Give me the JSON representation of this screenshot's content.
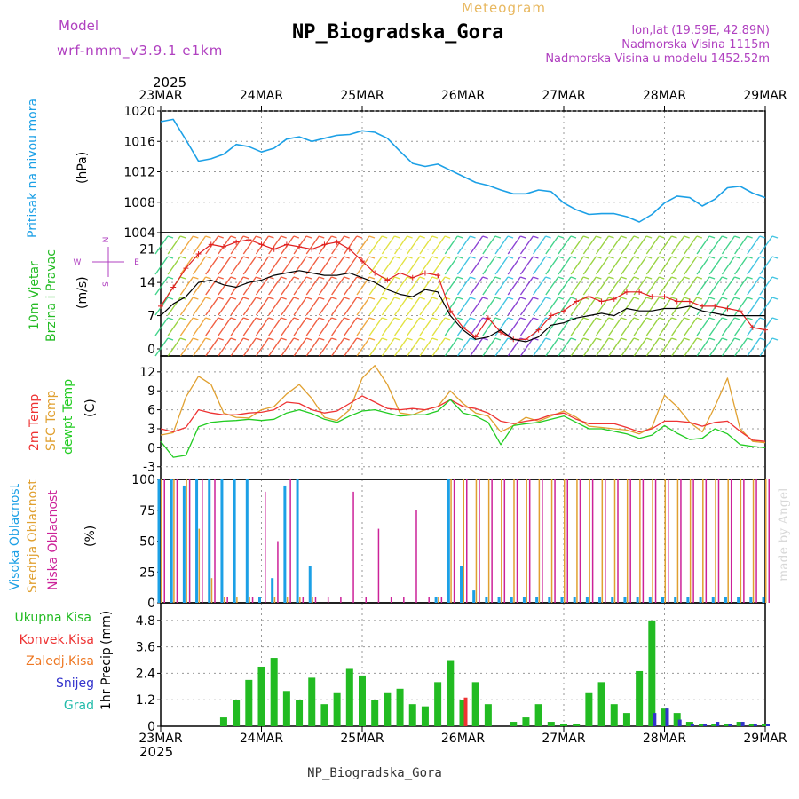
{
  "header": {
    "model_label": "Model",
    "model_name": "wrf-nmm_v3.9.1 e1km",
    "super_title": "Meteogram",
    "title": "NP_Biogradska_Gora",
    "lonlat": "lon,lat (19.59E, 42.89N)",
    "elevation": "Nadmorska Visina 1115m",
    "model_elevation": "Nadmorska Visina u modelu 1452.52m",
    "footer_title": "NP_Biogradska_Gora",
    "watermark": "made by Angel"
  },
  "colors": {
    "pressure": "#1ca0e6",
    "wind_label": "#22bb22",
    "wind_speed": "#000000",
    "wind_gust": "#e02020",
    "t2m": "#ee3333",
    "sfc": "#e0a030",
    "dewpt": "#22cc22",
    "cloud_high": "#1ca0e6",
    "cloud_mid": "#e0a030",
    "cloud_low": "#cc2299",
    "rain_total": "#22bb22",
    "rain_conv": "#ee3333",
    "freezing_rain": "#ee7722",
    "snow": "#3333cc",
    "hail": "#22bbaa",
    "purple_text": "#b040c0"
  },
  "time_axis": {
    "year": "2025",
    "labels": [
      "23MAR",
      "24MAR",
      "25MAR",
      "26MAR",
      "27MAR",
      "28MAR",
      "29MAR"
    ]
  },
  "chart_data": [
    {
      "type": "line",
      "panel": "pressure",
      "ylabel": "Pritisak na nivou mora",
      "unit": "(hPa)",
      "ylim": [
        1004,
        1020
      ],
      "yticks": [
        "1004",
        "1008",
        "1012",
        "1016",
        "1020"
      ],
      "x": [
        0,
        3,
        6,
        9,
        12,
        15,
        18,
        21,
        24,
        27,
        30,
        33,
        36,
        39,
        42,
        45,
        48,
        51,
        54,
        57,
        60,
        63,
        66,
        69,
        72,
        75,
        78,
        81,
        84,
        87,
        90,
        93,
        96,
        99,
        102,
        105,
        108,
        111,
        114,
        117,
        120,
        123,
        126,
        129,
        132,
        135,
        138,
        141,
        144
      ],
      "series": [
        {
          "name": "",
          "values": [
            1018.6,
            1018.9,
            1016.2,
            1013.4,
            1013.7,
            1014.3,
            1015.6,
            1015.3,
            1014.6,
            1015.1,
            1016.3,
            1016.6,
            1016.0,
            1016.4,
            1016.8,
            1016.9,
            1017.4,
            1017.2,
            1016.4,
            1014.7,
            1013.1,
            1012.7,
            1013.0,
            1012.2,
            1011.4,
            1010.6,
            1010.2,
            1009.6,
            1009.1,
            1009.1,
            1009.6,
            1009.4,
            1007.9,
            1007.0,
            1006.4,
            1006.5,
            1006.5,
            1006.1,
            1005.4,
            1006.4,
            1007.9,
            1008.8,
            1008.6,
            1007.5,
            1008.4,
            1009.9,
            1010.1,
            1009.2,
            1008.6
          ]
        }
      ]
    },
    {
      "type": "line",
      "panel": "wind",
      "ylabel": "10m Vjetar",
      "ylabel2": "Brzina i Pravac",
      "unit": "(m/s)",
      "compass": {
        "n": "N",
        "s": "S",
        "e": "E",
        "w": "W"
      },
      "ylim": [
        -1.5,
        24.5
      ],
      "yticks": [
        "0",
        "7",
        "14",
        "21"
      ],
      "x": [
        0,
        3,
        6,
        9,
        12,
        15,
        18,
        21,
        24,
        27,
        30,
        33,
        36,
        39,
        42,
        45,
        48,
        51,
        54,
        57,
        60,
        63,
        66,
        69,
        72,
        75,
        78,
        81,
        84,
        87,
        90,
        93,
        96,
        99,
        102,
        105,
        108,
        111,
        114,
        117,
        120,
        123,
        126,
        129,
        132,
        135,
        138,
        141,
        144
      ],
      "series": [
        {
          "name": "",
          "values": [
            7.0,
            9.5,
            11.0,
            14.0,
            14.5,
            13.5,
            13.0,
            14.0,
            14.5,
            15.5,
            16.0,
            16.5,
            16.0,
            15.5,
            15.5,
            16.0,
            15.0,
            14.0,
            12.5,
            11.5,
            11.0,
            12.5,
            12.0,
            7.0,
            4.0,
            2.0,
            2.5,
            4.0,
            2.0,
            1.5,
            2.5,
            5.0,
            5.5,
            6.5,
            7.0,
            7.5,
            7.0,
            8.5,
            8.0,
            8.0,
            8.5,
            8.5,
            9.0,
            8.0,
            7.5,
            7.0,
            7.0,
            7.0,
            7.0
          ]
        },
        {
          "name": "",
          "values": [
            9.0,
            13.0,
            17.0,
            20.0,
            22.0,
            21.5,
            22.5,
            23.0,
            22.0,
            21.0,
            22.0,
            21.5,
            21.0,
            22.0,
            22.5,
            21.0,
            18.5,
            16.0,
            14.5,
            16.0,
            15.0,
            16.0,
            15.5,
            8.0,
            4.5,
            2.5,
            6.5,
            3.5,
            2.0,
            2.0,
            4.0,
            7.0,
            8.0,
            10.0,
            11.0,
            10.0,
            10.5,
            12.0,
            12.0,
            11.0,
            11.0,
            10.0,
            10.0,
            9.0,
            9.0,
            8.5,
            8.0,
            4.5,
            4.0
          ]
        }
      ]
    },
    {
      "type": "line",
      "panel": "temperature",
      "ylabel": "2m Temp",
      "ylabel2": "SFC Temp",
      "ylabel3": "dewpt Temp",
      "unit": "(C)",
      "ylim": [
        -5,
        14.5
      ],
      "yticks": [
        "-3",
        "0",
        "3",
        "6",
        "9",
        "12"
      ],
      "x": [
        0,
        3,
        6,
        9,
        12,
        15,
        18,
        21,
        24,
        27,
        30,
        33,
        36,
        39,
        42,
        45,
        48,
        51,
        54,
        57,
        60,
        63,
        66,
        69,
        72,
        75,
        78,
        81,
        84,
        87,
        90,
        93,
        96,
        99,
        102,
        105,
        108,
        111,
        114,
        117,
        120,
        123,
        126,
        129,
        132,
        135,
        138,
        141,
        144
      ],
      "series": [
        {
          "name": "",
          "values": [
            3.0,
            2.5,
            3.2,
            6.0,
            5.5,
            5.2,
            5.2,
            5.5,
            5.6,
            6.0,
            7.2,
            7.0,
            6.0,
            5.5,
            5.8,
            7.0,
            8.2,
            7.2,
            6.2,
            6.0,
            6.2,
            6.0,
            6.5,
            7.6,
            6.5,
            6.2,
            5.5,
            4.2,
            3.8,
            4.2,
            4.5,
            5.2,
            5.5,
            4.5,
            3.8,
            3.8,
            3.8,
            3.2,
            2.5,
            3.0,
            4.2,
            4.2,
            4.0,
            3.4,
            4.0,
            4.2,
            2.6,
            1.2,
            1.0
          ]
        },
        {
          "name": "",
          "values": [
            2.0,
            2.4,
            8.0,
            11.3,
            10.0,
            5.5,
            4.8,
            4.7,
            6.0,
            6.5,
            8.5,
            10.0,
            7.8,
            4.8,
            4.3,
            6.0,
            11.0,
            13.0,
            10.0,
            5.5,
            5.2,
            6.0,
            6.5,
            9.0,
            7.0,
            5.5,
            5.0,
            2.5,
            3.5,
            4.8,
            4.2,
            5.0,
            5.8,
            4.8,
            3.4,
            3.2,
            3.0,
            2.8,
            2.2,
            3.2,
            8.3,
            6.5,
            4.0,
            2.5,
            6.5,
            11.0,
            3.0,
            1.0,
            0.8
          ]
        },
        {
          "name": "",
          "values": [
            1.0,
            -1.5,
            -1.2,
            3.3,
            4.0,
            4.2,
            4.3,
            4.5,
            4.3,
            4.5,
            5.5,
            6.0,
            5.4,
            4.5,
            4.0,
            5.0,
            5.8,
            6.0,
            5.5,
            5.0,
            5.2,
            5.2,
            5.8,
            7.6,
            5.5,
            5.0,
            4.0,
            0.5,
            3.5,
            3.8,
            4.0,
            4.5,
            5.0,
            4.0,
            3.0,
            3.0,
            2.6,
            2.2,
            1.5,
            2.0,
            3.5,
            2.3,
            1.3,
            1.5,
            3.0,
            2.2,
            0.5,
            0.2,
            0.0
          ]
        }
      ]
    },
    {
      "type": "bar",
      "panel": "clouds",
      "ylabel": "Visoka Oblacnost",
      "ylabel2": "Srednja Oblacnost",
      "ylabel3": "Niska Oblacnost",
      "unit": "(%)",
      "ylim": [
        0,
        100
      ],
      "yticks": [
        "0",
        "25",
        "50",
        "75",
        "100"
      ],
      "x": [
        0,
        3,
        6,
        9,
        12,
        15,
        18,
        21,
        24,
        27,
        30,
        33,
        36,
        39,
        42,
        45,
        48,
        51,
        54,
        57,
        60,
        63,
        66,
        69,
        72,
        75,
        78,
        81,
        84,
        87,
        90,
        93,
        96,
        99,
        102,
        105,
        108,
        111,
        114,
        117,
        120,
        123,
        126,
        129,
        132,
        135,
        138,
        141,
        144
      ],
      "series": [
        {
          "name": "",
          "values": [
            100,
            100,
            95,
            100,
            100,
            100,
            100,
            100,
            5,
            20,
            95,
            100,
            30,
            0,
            0,
            0,
            0,
            0,
            0,
            0,
            0,
            0,
            5,
            100,
            30,
            10,
            5,
            5,
            5,
            5,
            5,
            5,
            5,
            5,
            5,
            5,
            5,
            5,
            5,
            5,
            5,
            5,
            5,
            5,
            5,
            5,
            5,
            5,
            5
          ]
        },
        {
          "name": "",
          "values": [
            100,
            100,
            100,
            60,
            20,
            5,
            5,
            5,
            0,
            5,
            5,
            5,
            5,
            0,
            0,
            0,
            0,
            0,
            0,
            0,
            0,
            0,
            5,
            100,
            100,
            100,
            100,
            100,
            100,
            100,
            100,
            100,
            100,
            100,
            100,
            100,
            100,
            100,
            100,
            100,
            100,
            100,
            100,
            100,
            100,
            100,
            100,
            100,
            100
          ]
        },
        {
          "name": "",
          "values": [
            100,
            100,
            100,
            100,
            100,
            5,
            0,
            5,
            90,
            50,
            100,
            5,
            5,
            5,
            5,
            90,
            5,
            60,
            5,
            5,
            75,
            5,
            5,
            100,
            100,
            100,
            100,
            100,
            100,
            100,
            100,
            100,
            100,
            100,
            100,
            100,
            100,
            100,
            100,
            100,
            100,
            100,
            100,
            100,
            100,
            100,
            100,
            100,
            100
          ]
        }
      ]
    },
    {
      "type": "bar",
      "panel": "precip",
      "legend": [
        "Ukupna Kisa",
        "Konvek.Kisa",
        "Zaledj.Kisa",
        "Snijeg",
        "Grad"
      ],
      "ylabel": "1hr Precip",
      "unit": "(mm)",
      "ylim": [
        0,
        5.6
      ],
      "yticks": [
        "0",
        "1.2",
        "2.4",
        "3.6",
        "4.8"
      ],
      "x": [
        0,
        3,
        6,
        9,
        12,
        15,
        18,
        21,
        24,
        27,
        30,
        33,
        36,
        39,
        42,
        45,
        48,
        51,
        54,
        57,
        60,
        63,
        66,
        69,
        72,
        75,
        78,
        81,
        84,
        87,
        90,
        93,
        96,
        99,
        102,
        105,
        108,
        111,
        114,
        117,
        120,
        123,
        126,
        129,
        132,
        135,
        138,
        141,
        144
      ],
      "series": [
        {
          "name": "",
          "values": [
            0,
            0,
            0,
            0,
            0,
            0.4,
            1.2,
            2.1,
            2.7,
            3.1,
            1.6,
            1.2,
            2.2,
            1.0,
            1.5,
            2.6,
            2.3,
            1.2,
            1.5,
            1.7,
            1.0,
            0.9,
            2.0,
            3.0,
            1.2,
            2.0,
            1.0,
            0,
            0.2,
            0.4,
            1.0,
            0.2,
            0.1,
            0.1,
            1.5,
            2.0,
            1.0,
            0.6,
            2.5,
            4.8,
            0.8,
            0.6,
            0.2,
            0.1,
            0.1,
            0.1,
            0.2,
            0.1,
            0.1
          ]
        },
        {
          "name": "",
          "values": [
            0,
            0,
            0,
            0,
            0,
            0,
            0,
            0,
            0,
            0,
            0,
            0,
            0,
            0,
            0,
            0,
            0,
            0,
            0,
            0,
            0,
            0,
            0,
            0,
            1.3,
            0,
            0,
            0,
            0,
            0,
            0,
            0,
            0,
            0,
            0,
            0,
            0,
            0,
            0,
            0,
            0,
            0,
            0,
            0,
            0,
            0,
            0,
            0,
            0
          ]
        },
        {
          "name": "",
          "values": [
            0,
            0,
            0,
            0,
            0,
            0,
            0,
            0,
            0,
            0,
            0,
            0,
            0,
            0,
            0,
            0,
            0,
            0,
            0,
            0,
            0,
            0,
            0,
            0,
            0,
            0,
            0,
            0,
            0,
            0,
            0,
            0,
            0,
            0,
            0,
            0,
            0,
            0,
            0,
            0,
            0,
            0,
            0,
            0,
            0,
            0,
            0,
            0,
            0
          ]
        },
        {
          "name": "",
          "values": [
            0,
            0,
            0,
            0,
            0,
            0,
            0,
            0,
            0,
            0,
            0,
            0,
            0,
            0,
            0,
            0,
            0,
            0,
            0,
            0,
            0,
            0,
            0,
            0,
            0,
            0,
            0,
            0,
            0,
            0,
            0,
            0,
            0,
            0,
            0,
            0,
            0,
            0,
            0,
            0.6,
            0.8,
            0.3,
            0.1,
            0.1,
            0.2,
            0.1,
            0.2,
            0.1,
            0.1
          ]
        },
        {
          "name": "",
          "values": [
            0,
            0,
            0,
            0,
            0,
            0,
            0,
            0,
            0,
            0,
            0,
            0,
            0,
            0,
            0,
            0,
            0,
            0,
            0,
            0,
            0,
            0,
            0,
            0,
            0,
            0,
            0,
            0,
            0,
            0,
            0,
            0,
            0,
            0,
            0,
            0,
            0,
            0,
            0,
            0,
            0,
            0,
            0,
            0,
            0,
            0,
            0,
            0,
            0
          ]
        }
      ]
    }
  ]
}
